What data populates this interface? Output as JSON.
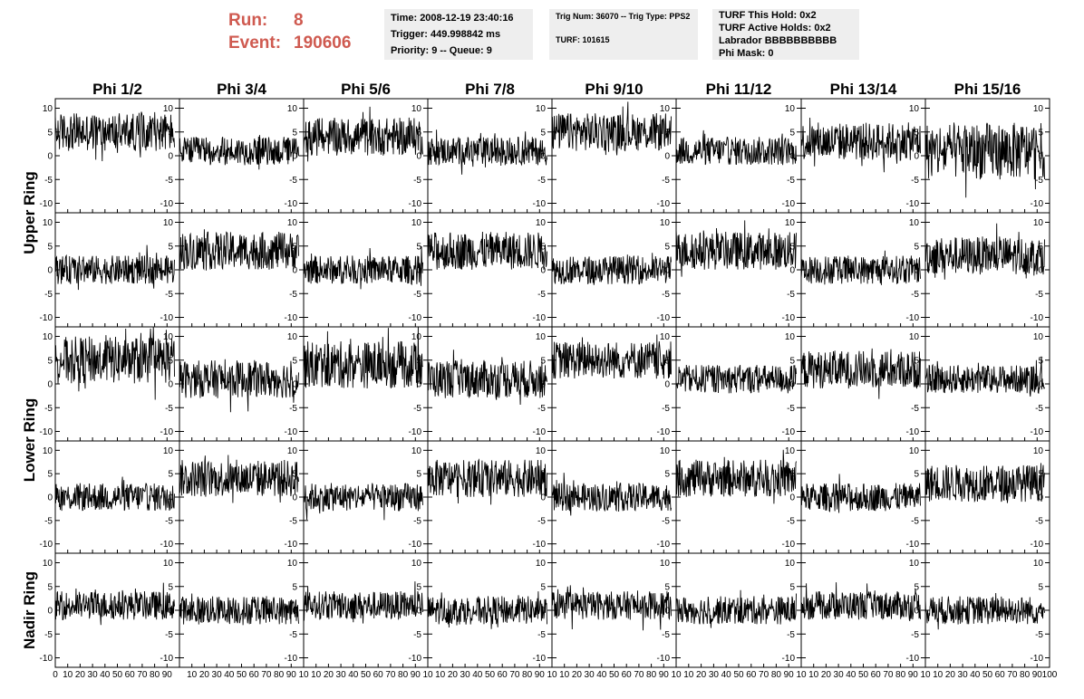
{
  "header": {
    "run_label": "Run:",
    "run_value": "8",
    "event_label": "Event:",
    "event_value": "190606"
  },
  "info_time": {
    "time": "Time: 2008-12-19 23:40:16",
    "trigger": "Trigger: 449.998842 ms",
    "priority": "Priority: 9 -- Queue: 9"
  },
  "info_trig": {
    "trig": "Trig Num: 36070 -- Trig Type: PPS2",
    "turf": "TURF: 101615"
  },
  "info_turf": {
    "this_hold": "TURF This Hold: 0x2",
    "active_holds": "TURF Active Holds: 0x2",
    "labrador": "Labrador BBBBBBBBBB",
    "phi_mask": "Phi Mask: 0"
  },
  "colors": {
    "header_red": "#cf5a50",
    "panel_bg": "#eeeeee",
    "trace": "#000000"
  },
  "chart_data": {
    "type": "line",
    "columns": [
      "Phi 1/2",
      "Phi 3/4",
      "Phi 5/6",
      "Phi 7/8",
      "Phi 9/10",
      "Phi 11/12",
      "Phi 13/14",
      "Phi 15/16"
    ],
    "row_groups": [
      {
        "label": "Upper Ring",
        "rows": 2
      },
      {
        "label": "Lower Ring",
        "rows": 2
      },
      {
        "label": "Nadir Ring",
        "rows": 1
      }
    ],
    "xlim": [
      0,
      100
    ],
    "ylim": [
      -12,
      12
    ],
    "y_ticks": [
      10,
      5,
      0,
      -5,
      -10
    ],
    "y_tick_labels": [
      "10",
      "5",
      "0",
      "-5",
      "-10"
    ],
    "x_tick_labels_first": [
      "0",
      "10",
      "20",
      "30",
      "40",
      "50",
      "60",
      "70",
      "80",
      "90"
    ],
    "x_tick_labels": [
      "10",
      "20",
      "30",
      "40",
      "50",
      "60",
      "70",
      "80",
      "90",
      "10"
    ],
    "x_tick_labels_last": [
      "10",
      "20",
      "30",
      "40",
      "50",
      "60",
      "70",
      "80",
      "90",
      "100"
    ],
    "n_samples": 260,
    "trace_xmax": 96,
    "baselines": [
      [
        5,
        1,
        4,
        1,
        5,
        1,
        3,
        1
      ],
      [
        0,
        4,
        0,
        4,
        0,
        4,
        0,
        3
      ],
      [
        5,
        1,
        4,
        1,
        5,
        1,
        3,
        1
      ],
      [
        0,
        4,
        0,
        4,
        0,
        4,
        0,
        3
      ],
      [
        1,
        0,
        1,
        0,
        1,
        0,
        1,
        0
      ]
    ],
    "amplitudes": [
      [
        4,
        3,
        4,
        3,
        4,
        3,
        4,
        6
      ],
      [
        3,
        4,
        3,
        4,
        3,
        4,
        3,
        4
      ],
      [
        5,
        4,
        5,
        4,
        4,
        3,
        4,
        3
      ],
      [
        3,
        4,
        3,
        4,
        3,
        4,
        3,
        4
      ],
      [
        3,
        3,
        3,
        3,
        3,
        3,
        3,
        3
      ]
    ]
  }
}
